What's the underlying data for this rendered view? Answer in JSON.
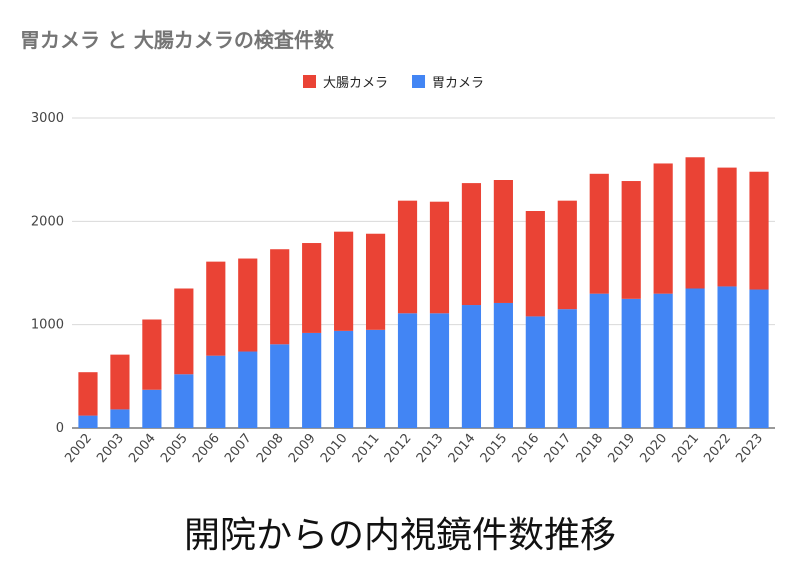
{
  "chart_data": {
    "type": "bar",
    "stacked": true,
    "title": "胃カメラ と 大腸カメラの検査件数",
    "xlabel": "",
    "ylabel": "",
    "categories": [
      "2002",
      "2003",
      "2004",
      "2005",
      "2006",
      "2007",
      "2008",
      "2009",
      "2010",
      "2011",
      "2012",
      "2013",
      "2014",
      "2015",
      "2016",
      "2017",
      "2018",
      "2019",
      "2020",
      "2021",
      "2022",
      "2023"
    ],
    "series": [
      {
        "name": "胃カメラ",
        "color": "#4285f4",
        "values": [
          120,
          180,
          370,
          520,
          700,
          740,
          810,
          920,
          940,
          950,
          1110,
          1110,
          1190,
          1210,
          1080,
          1150,
          1300,
          1250,
          1300,
          1350,
          1370,
          1340
        ]
      },
      {
        "name": "大腸カメラ",
        "color": "#ea4335",
        "values": [
          420,
          530,
          680,
          830,
          910,
          900,
          920,
          870,
          960,
          930,
          1090,
          1080,
          1180,
          1190,
          1020,
          1050,
          1160,
          1140,
          1260,
          1270,
          1150,
          1140
        ]
      }
    ],
    "ylim": [
      0,
      3000
    ],
    "yticks": [
      0,
      1000,
      2000,
      3000
    ],
    "legend_position": "top-center",
    "grid": true
  },
  "caption": "開院からの内視鏡件数推移"
}
